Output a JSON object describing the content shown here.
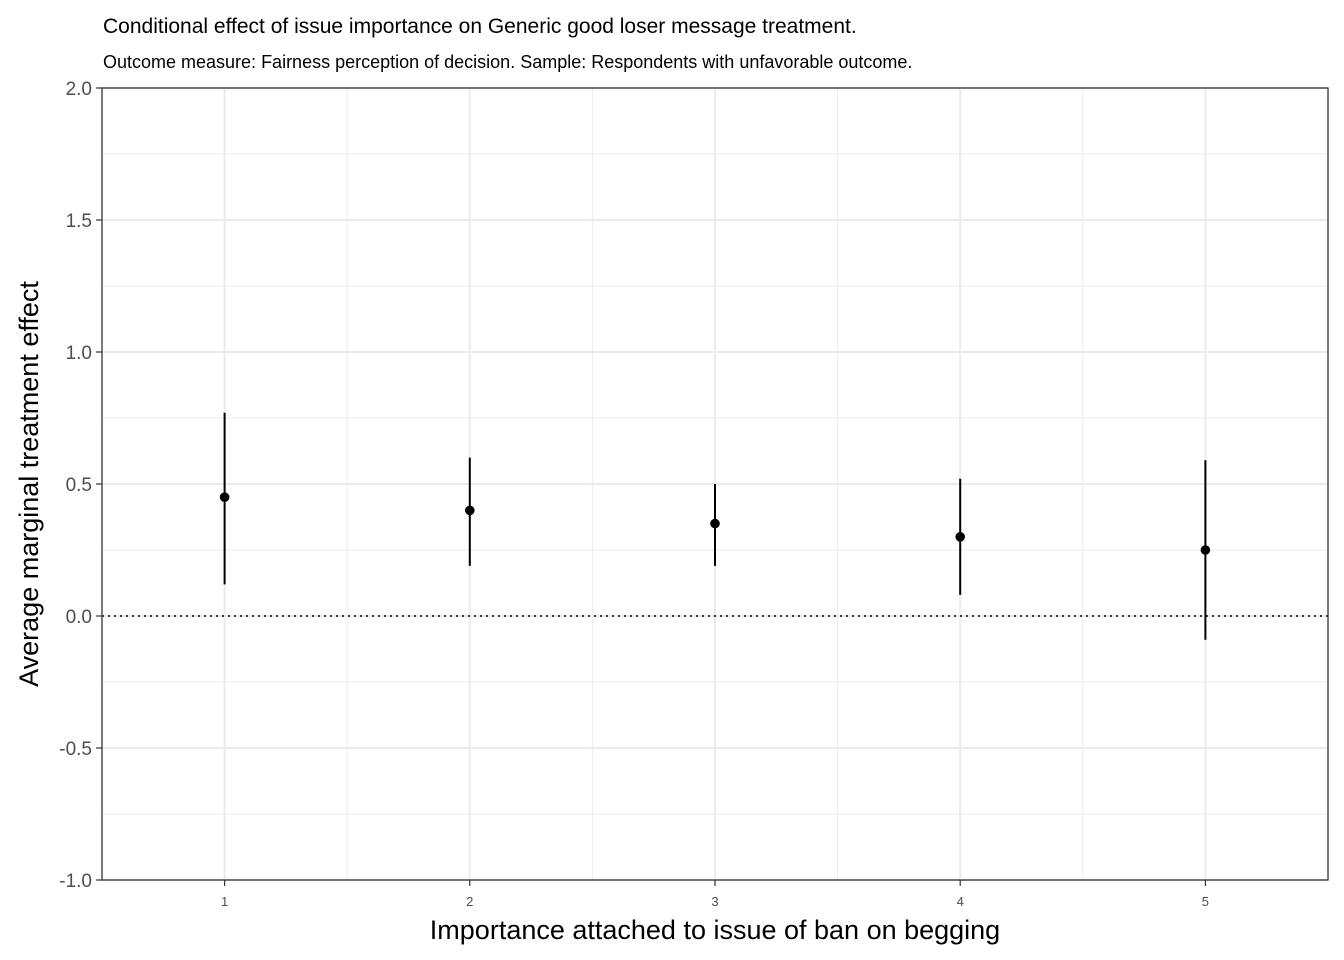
{
  "chart_data": {
    "type": "scatter",
    "title": "Conditional effect of issue importance on Generic good loser message treatment.",
    "subtitle": "Outcome measure: Fairness perception of decision. Sample: Respondents with unfavorable outcome.",
    "xlabel": "Importance attached to issue of ban on begging",
    "ylabel": "Average marginal treatment effect",
    "x": [
      1,
      2,
      3,
      4,
      5
    ],
    "x_tick_labels": [
      "1",
      "2",
      "3",
      "4",
      "5"
    ],
    "xlim": [
      0.5,
      5.5
    ],
    "ylim": [
      -1.0,
      2.0
    ],
    "y_ticks": [
      -1.0,
      -0.5,
      0.0,
      0.5,
      1.0,
      1.5,
      2.0
    ],
    "y_tick_labels": [
      "-1.0",
      "-0.5",
      "0.0",
      "0.5",
      "1.0",
      "1.5",
      "2.0"
    ],
    "series": [
      {
        "name": "Average marginal treatment effect",
        "estimates": [
          0.45,
          0.4,
          0.35,
          0.3,
          0.25
        ],
        "ci_lower": [
          0.12,
          0.19,
          0.19,
          0.08,
          -0.09
        ],
        "ci_upper": [
          0.77,
          0.6,
          0.5,
          0.52,
          0.59
        ]
      }
    ],
    "reference_line": {
      "y": 0.0,
      "style": "dotted"
    },
    "grid": true,
    "theme": "bw",
    "colors": {
      "points": "#000000",
      "grid": "#ebebeb",
      "panel_border": "#333333",
      "tick_text": "#4d4d4d"
    }
  }
}
